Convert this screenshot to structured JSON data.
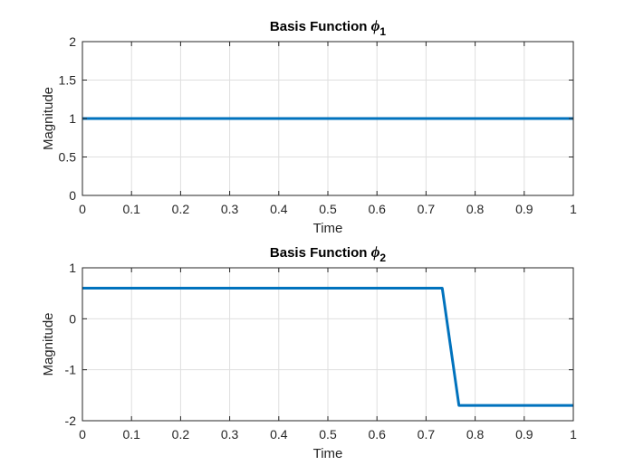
{
  "chart_data": [
    {
      "type": "line",
      "title": "Basis Function ",
      "title_symbol": "ϕ",
      "title_subscript": "1",
      "xlabel": "Time",
      "ylabel": "Magnitude",
      "xlim": [
        0,
        1
      ],
      "ylim": [
        0,
        2
      ],
      "xticks": [
        "0",
        "0.1",
        "0.2",
        "0.3",
        "0.4",
        "0.5",
        "0.6",
        "0.7",
        "0.8",
        "0.9",
        "1"
      ],
      "yticks": [
        "0",
        "0.5",
        "1",
        "1.5",
        "2"
      ],
      "grid": true,
      "color": "#0072BD",
      "series": [
        {
          "x": [
            0,
            1
          ],
          "y": [
            1,
            1
          ]
        }
      ]
    },
    {
      "type": "line",
      "title": "Basis Function ",
      "title_symbol": "ϕ",
      "title_subscript": "2",
      "xlabel": "Time",
      "ylabel": "Magnitude",
      "xlim": [
        0,
        1
      ],
      "ylim": [
        -2,
        1
      ],
      "xticks": [
        "0",
        "0.1",
        "0.2",
        "0.3",
        "0.4",
        "0.5",
        "0.6",
        "0.7",
        "0.8",
        "0.9",
        "1"
      ],
      "yticks": [
        "-2",
        "-1",
        "0",
        "1"
      ],
      "grid": true,
      "color": "#0072BD",
      "series": [
        {
          "x": [
            0,
            0.733,
            0.767,
            1
          ],
          "y": [
            0.6,
            0.6,
            -1.7,
            -1.7
          ]
        }
      ]
    }
  ]
}
